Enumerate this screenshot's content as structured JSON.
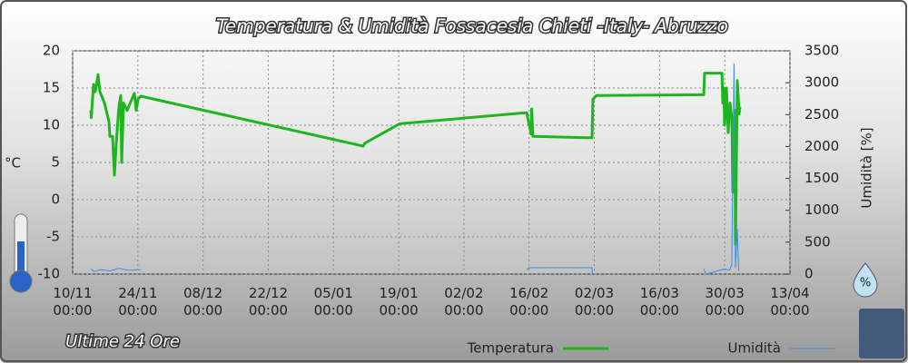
{
  "chart_data": {
    "type": "line",
    "title": "Temperatura & Umidità Fossacesia Chieti -Italy- Abruzzo",
    "subtitle": "Ultime 24 Ore",
    "y_label": "°C",
    "y2_label": "Umidità [%]",
    "xlim": [
      0,
      154
    ],
    "xticks": [
      {
        "value": 0,
        "label": "10/11\n00:00"
      },
      {
        "value": 14,
        "label": "24/11\n00:00"
      },
      {
        "value": 28,
        "label": "08/12\n00:00"
      },
      {
        "value": 42,
        "label": "22/12\n00:00"
      },
      {
        "value": 56,
        "label": "05/01\n00:00"
      },
      {
        "value": 70,
        "label": "19/01\n00:00"
      },
      {
        "value": 84,
        "label": "02/02\n00:00"
      },
      {
        "value": 98,
        "label": "16/02\n00:00"
      },
      {
        "value": 112,
        "label": "02/03\n00:00"
      },
      {
        "value": 126,
        "label": "16/03\n00:00"
      },
      {
        "value": 140,
        "label": "30/03\n00:00"
      },
      {
        "value": 154,
        "label": "13/04\n00:00"
      }
    ],
    "ylim": [
      -10,
      20
    ],
    "yticks": [
      -10,
      -5,
      0,
      5,
      10,
      15,
      20
    ],
    "y2lim": [
      0,
      3500
    ],
    "y2ticks": [
      0,
      500,
      1000,
      1500,
      2000,
      2500,
      3000,
      3500
    ],
    "grid": true,
    "legend": "bottom",
    "series": [
      {
        "name": "Temperatura",
        "color": "#1fb51f",
        "x": [
          3.9,
          3.99,
          4.48,
          4.87,
          5.46,
          5.85,
          6.82,
          7.8,
          7.99,
          8.58,
          8.97,
          9.36,
          9.94,
          10.33,
          10.53,
          10.92,
          11.7,
          13.26,
          13.65,
          14.04,
          14.62,
          62.38,
          62.77,
          70.18,
          97.47,
          98.44,
          98.54,
          98.84,
          111.51,
          111.7,
          112.48,
          135.48,
          135.68,
          139.39,
          139.58,
          139.78,
          139.97,
          140.36,
          140.75,
          141.14,
          141.53,
          141.73,
          142.12,
          142.31,
          142.7,
          143.09,
          143.28
        ],
        "values": [
          12,
          11,
          15.5,
          14.5,
          16.8,
          14.5,
          13,
          10.5,
          8.5,
          8.5,
          3.3,
          7.5,
          12.5,
          14,
          5,
          13,
          12,
          14.3,
          12,
          13.5,
          13.9,
          7.2,
          7.6,
          10.2,
          11.7,
          8.8,
          12.2,
          8.5,
          8.3,
          13.5,
          14,
          14.1,
          17,
          17,
          13,
          15,
          10,
          15,
          9,
          13,
          11,
          1,
          12,
          -6,
          16,
          11.5,
          12.5
        ]
      },
      {
        "name": "Umidità",
        "color": "#3b8ee6",
        "axis": "y2",
        "x": [
          3.9,
          4.6,
          6,
          8,
          10,
          12,
          14.6,
          50,
          97.5,
          98,
          111.5,
          111.6,
          125,
          135.5,
          136,
          140,
          141,
          141.5,
          142,
          142.3,
          142.7,
          143
        ],
        "values": [
          80,
          40,
          70,
          50,
          90,
          60,
          70,
          null,
          70,
          100,
          100,
          0,
          null,
          80,
          0,
          80,
          60,
          150,
          3300,
          100,
          700,
          50
        ]
      }
    ]
  }
}
